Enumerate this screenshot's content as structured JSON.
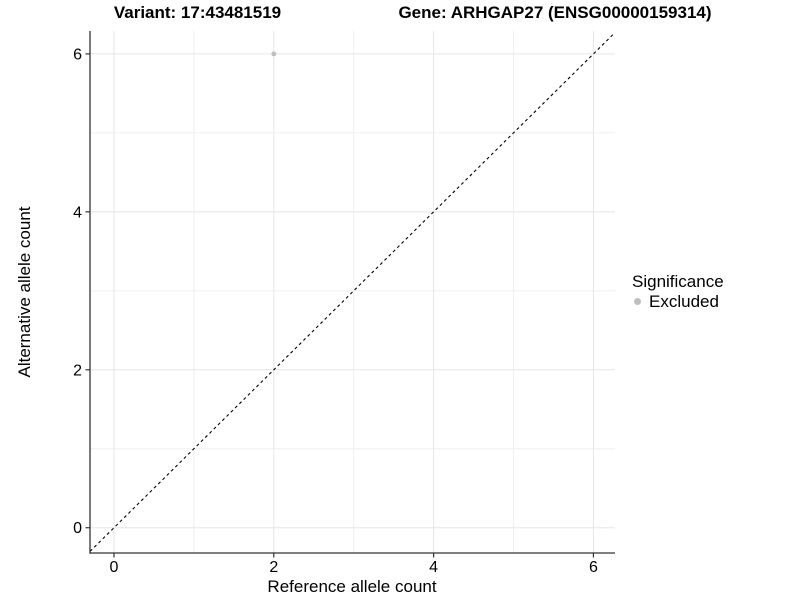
{
  "titles": {
    "variant": "Variant: 17:43481519",
    "gene": "Gene: ARHGAP27 (ENSG00000159314)"
  },
  "legend": {
    "title": "Significance",
    "items": [
      {
        "label": "Excluded",
        "color": "#bebebe"
      }
    ]
  },
  "chart_data": {
    "type": "scatter",
    "title": "Variant: 17:43481519    Gene: ARHGAP27 (ENSG00000159314)",
    "xlabel": "Reference allele count",
    "ylabel": "Alternative allele count",
    "xlim": [
      -0.3,
      6.27
    ],
    "ylim": [
      -0.32,
      6.29
    ],
    "x_ticks": [
      0,
      2,
      4,
      6
    ],
    "y_ticks": [
      0,
      2,
      4,
      6
    ],
    "minor_gridlines_x": [
      1,
      3,
      5
    ],
    "minor_gridlines_y": [
      1,
      3,
      5
    ],
    "grid": true,
    "legend_position": "right",
    "legend_title": "Significance",
    "series": [
      {
        "name": "Excluded",
        "color": "#bebebe",
        "points": [
          {
            "x": 2,
            "y": 6
          }
        ]
      }
    ],
    "reference_line": {
      "type": "identity",
      "style": "dashed",
      "color": "#000000"
    }
  },
  "colors": {
    "grid_major": "#e5e5e5",
    "grid_minor": "#efefef",
    "axis": "#333333",
    "text": "#000000",
    "background": "#ffffff"
  }
}
